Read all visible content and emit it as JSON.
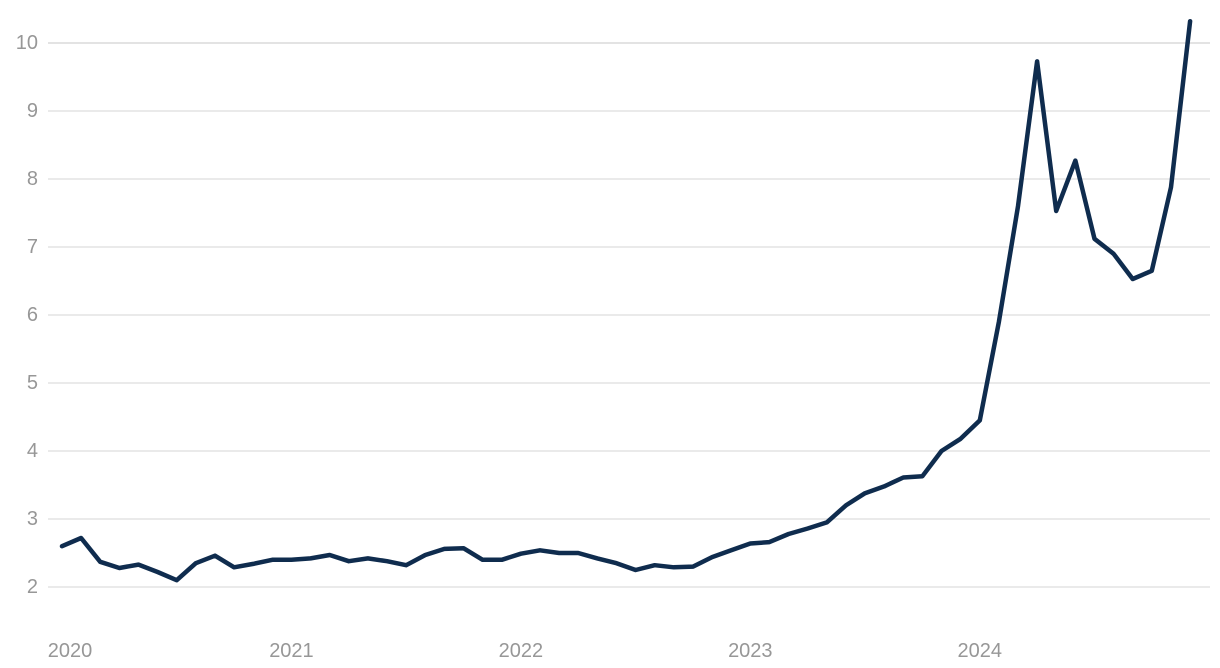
{
  "chart_data": {
    "type": "line",
    "title": "",
    "xlabel": "",
    "ylabel": "",
    "frequency": "monthly",
    "categories": [
      "2020-01",
      "2020-02",
      "2020-03",
      "2020-04",
      "2020-05",
      "2020-06",
      "2020-07",
      "2020-08",
      "2020-09",
      "2020-10",
      "2020-11",
      "2020-12",
      "2021-01",
      "2021-02",
      "2021-03",
      "2021-04",
      "2021-05",
      "2021-06",
      "2021-07",
      "2021-08",
      "2021-09",
      "2021-10",
      "2021-11",
      "2021-12",
      "2022-01",
      "2022-02",
      "2022-03",
      "2022-04",
      "2022-05",
      "2022-06",
      "2022-07",
      "2022-08",
      "2022-09",
      "2022-10",
      "2022-11",
      "2022-12",
      "2023-01",
      "2023-02",
      "2023-03",
      "2023-04",
      "2023-05",
      "2023-06",
      "2023-07",
      "2023-08",
      "2023-09",
      "2023-10",
      "2023-11",
      "2023-12",
      "2024-01",
      "2024-02",
      "2024-03",
      "2024-04",
      "2024-05",
      "2024-06",
      "2024-07",
      "2024-08",
      "2024-09",
      "2024-10",
      "2024-11",
      "2024-12"
    ],
    "series": [
      {
        "name": "value",
        "values": [
          2.6,
          2.72,
          2.37,
          2.28,
          2.33,
          2.22,
          2.1,
          2.35,
          2.46,
          2.29,
          2.34,
          2.4,
          2.4,
          2.42,
          2.47,
          2.38,
          2.42,
          2.38,
          2.32,
          2.47,
          2.56,
          2.57,
          2.4,
          2.4,
          2.49,
          2.54,
          2.5,
          2.5,
          2.42,
          2.35,
          2.25,
          2.32,
          2.29,
          2.3,
          2.44,
          2.54,
          2.64,
          2.66,
          2.78,
          2.86,
          2.95,
          3.2,
          3.38,
          3.48,
          3.61,
          3.63,
          4.0,
          4.18,
          4.45,
          5.9,
          7.6,
          9.73,
          7.53,
          8.27,
          7.12,
          6.9,
          6.53,
          6.65,
          7.88,
          10.32
        ]
      }
    ],
    "y_tick_labels": [
      "2",
      "3",
      "4",
      "5",
      "6",
      "7",
      "8",
      "9",
      "10"
    ],
    "y_tick_values": [
      2,
      3,
      4,
      5,
      6,
      7,
      8,
      9,
      10
    ],
    "x_tick_labels": [
      "2020",
      "2021",
      "2022",
      "2023",
      "2024"
    ],
    "ylim": [
      2,
      10.45
    ],
    "grid": "horizontal",
    "legend": "none",
    "colors": {
      "line": "#0f2c4e",
      "gridline": "#e3e3e3",
      "tick_label": "#979797",
      "background": "#ffffff"
    }
  }
}
